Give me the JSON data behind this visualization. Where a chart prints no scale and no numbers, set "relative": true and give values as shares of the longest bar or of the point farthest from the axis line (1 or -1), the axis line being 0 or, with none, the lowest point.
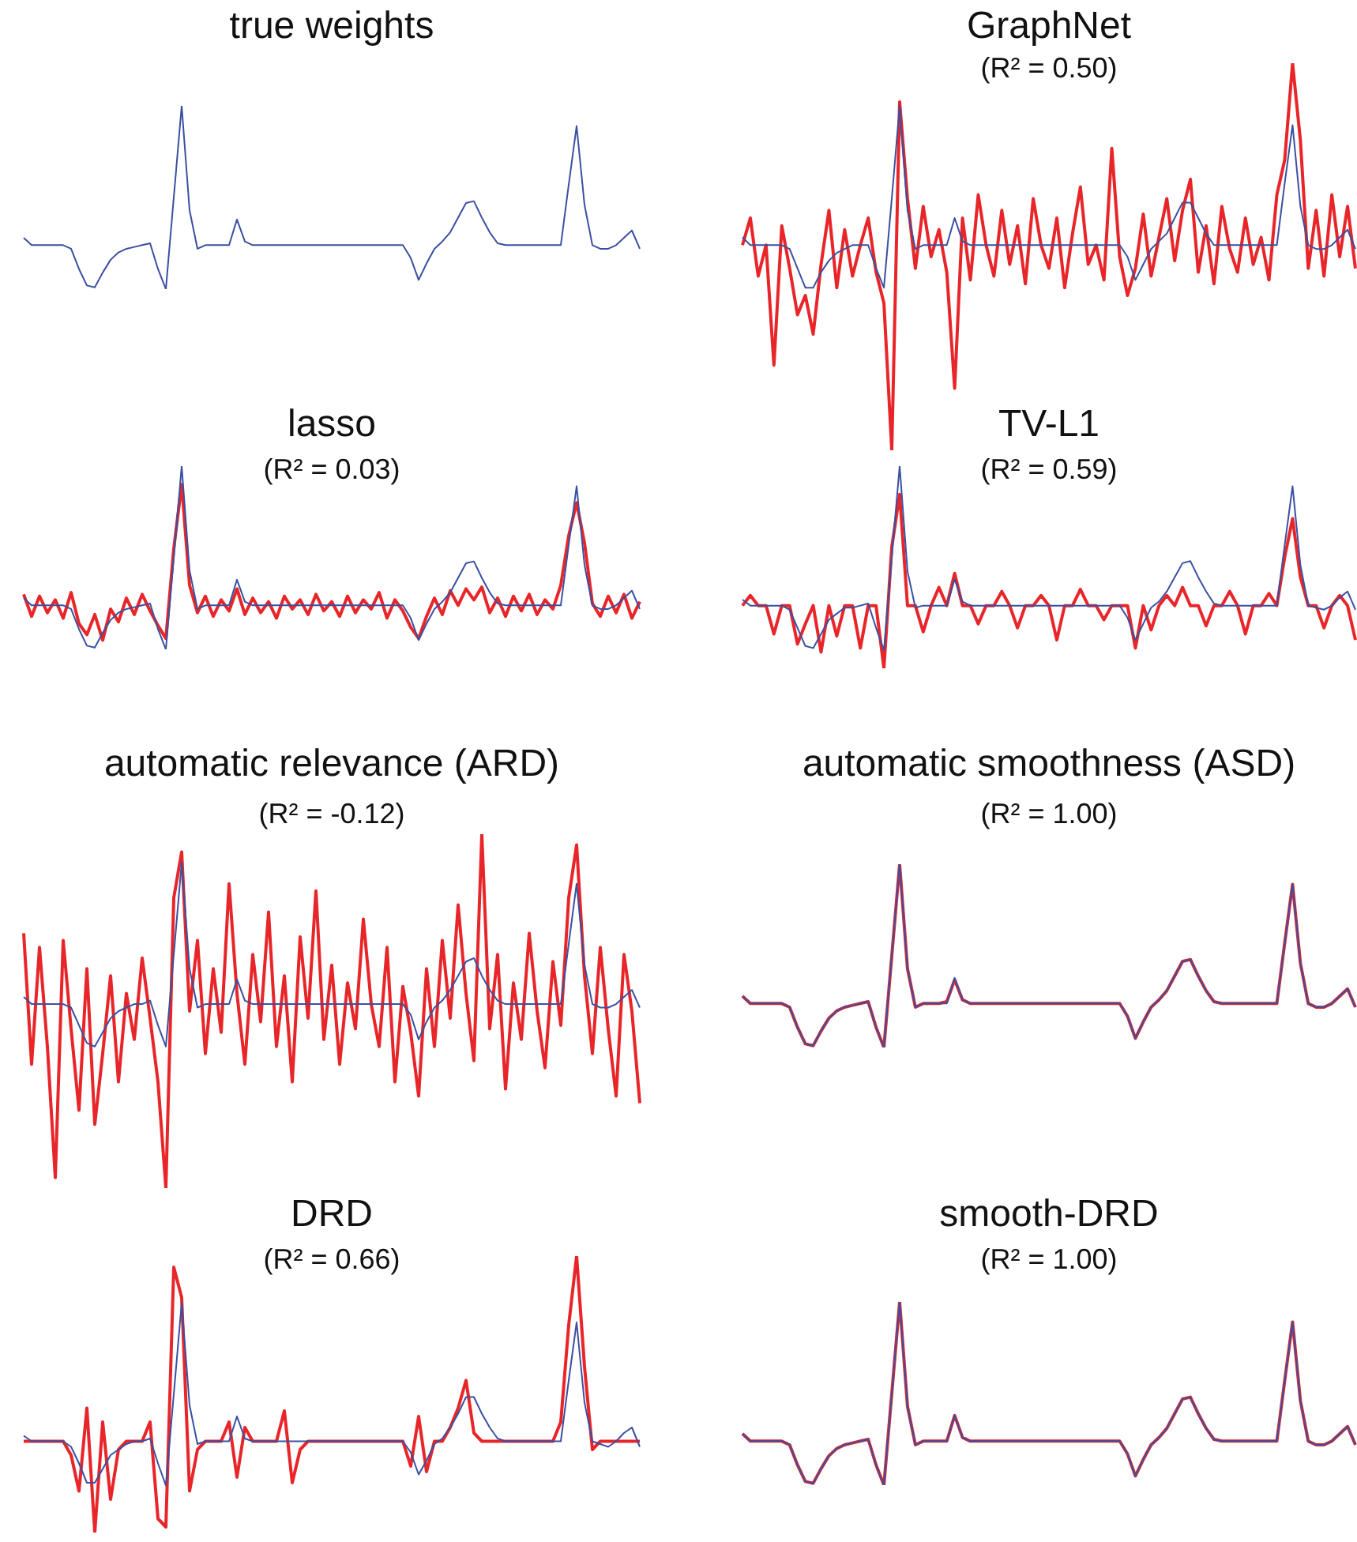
{
  "chart_data": [
    {
      "type": "line",
      "title": "true weights",
      "relative": true,
      "categories": [
        null,
        null,
        null,
        null,
        null,
        null,
        null,
        null,
        null,
        null,
        null,
        null,
        null,
        null,
        null,
        null,
        null,
        null,
        null,
        null,
        null,
        null,
        null,
        null,
        null,
        null,
        null,
        null,
        null,
        null,
        null,
        null,
        null,
        null,
        null,
        null,
        null,
        null,
        null,
        null,
        null,
        null,
        null,
        null,
        null,
        null,
        null,
        null,
        null,
        null,
        null,
        null,
        null,
        null,
        null,
        null,
        null,
        null,
        null,
        null,
        null,
        null,
        null,
        null,
        null,
        null,
        null,
        null,
        null,
        null,
        null,
        null,
        null,
        null,
        null,
        null,
        null,
        null,
        null
      ],
      "series": [
        {
          "color": "#3a50a0",
          "values": [
            0.28,
            0.24,
            0.24,
            0.24,
            0.24,
            0.24,
            0.22,
            0.11,
            0.02,
            0.01,
            0.09,
            0.16,
            0.2,
            0.22,
            0.23,
            0.24,
            0.25,
            0.11,
            0,
            0.5,
            1,
            0.43,
            0.22,
            0.24,
            0.24,
            0.24,
            0.24,
            0.38,
            0.26,
            0.24,
            0.24,
            0.24,
            0.24,
            0.24,
            0.24,
            0.24,
            0.24,
            0.24,
            0.24,
            0.24,
            0.24,
            0.24,
            0.24,
            0.24,
            0.24,
            0.24,
            0.24,
            0.24,
            0.24,
            0.17,
            0.05,
            0.14,
            0.22,
            0.26,
            0.31,
            0.39,
            0.47,
            0.48,
            0.39,
            0.31,
            0.25,
            0.24,
            0.24,
            0.24,
            0.24,
            0.24,
            0.24,
            0.24,
            0.24,
            0.57,
            0.89,
            0.46,
            0.24,
            0.22,
            0.22,
            0.24,
            0.28,
            0.32,
            0.22
          ]
        }
      ]
    },
    {
      "type": "line",
      "title": "GraphNet",
      "subtitle": "(R² = 0.50)",
      "relative": true,
      "categories": [
        null,
        null,
        null,
        null,
        null,
        null,
        null,
        null,
        null,
        null,
        null,
        null,
        null,
        null,
        null,
        null,
        null,
        null,
        null,
        null,
        null,
        null,
        null,
        null,
        null,
        null,
        null,
        null,
        null,
        null,
        null,
        null,
        null,
        null,
        null,
        null,
        null,
        null,
        null,
        null,
        null,
        null,
        null,
        null,
        null,
        null,
        null,
        null,
        null,
        null,
        null,
        null,
        null,
        null,
        null,
        null,
        null,
        null,
        null,
        null,
        null,
        null,
        null,
        null,
        null,
        null,
        null,
        null,
        null,
        null,
        null,
        null,
        null,
        null,
        null,
        null,
        null,
        null,
        null
      ],
      "series": [
        {
          "color": "#3a50a0",
          "values": [
            0.55,
            0.53,
            0.53,
            0.53,
            0.53,
            0.53,
            0.52,
            0.47,
            0.42,
            0.42,
            0.46,
            0.49,
            0.51,
            0.52,
            0.53,
            0.53,
            0.53,
            0.47,
            0.42,
            0.65,
            0.89,
            0.62,
            0.52,
            0.53,
            0.53,
            0.53,
            0.53,
            0.6,
            0.54,
            0.53,
            0.53,
            0.53,
            0.53,
            0.53,
            0.53,
            0.53,
            0.53,
            0.53,
            0.53,
            0.53,
            0.53,
            0.53,
            0.53,
            0.53,
            0.53,
            0.53,
            0.53,
            0.53,
            0.53,
            0.5,
            0.44,
            0.48,
            0.52,
            0.54,
            0.56,
            0.6,
            0.64,
            0.64,
            0.6,
            0.56,
            0.53,
            0.53,
            0.53,
            0.53,
            0.53,
            0.53,
            0.53,
            0.53,
            0.53,
            0.69,
            0.84,
            0.63,
            0.53,
            0.52,
            0.52,
            0.53,
            0.55,
            0.57,
            0.52
          ]
        },
        {
          "color": "#e8262a",
          "values": [
            0.53,
            0.6,
            0.45,
            0.53,
            0.22,
            0.58,
            0.47,
            0.35,
            0.4,
            0.3,
            0.48,
            0.62,
            0.42,
            0.57,
            0.45,
            0.53,
            0.6,
            0.46,
            0.38,
            0,
            0.9,
            0.65,
            0.47,
            0.63,
            0.5,
            0.57,
            0.46,
            0.16,
            0.6,
            0.44,
            0.66,
            0.53,
            0.45,
            0.62,
            0.48,
            0.58,
            0.43,
            0.65,
            0.53,
            0.47,
            0.6,
            0.42,
            0.56,
            0.68,
            0.48,
            0.53,
            0.44,
            0.78,
            0.5,
            0.4,
            0.47,
            0.61,
            0.45,
            0.55,
            0.65,
            0.49,
            0.62,
            0.7,
            0.46,
            0.58,
            0.43,
            0.63,
            0.52,
            0.46,
            0.6,
            0.48,
            0.55,
            0.44,
            0.66,
            0.75,
            1,
            0.8,
            0.47,
            0.62,
            0.45,
            0.66,
            0.5,
            0.63,
            0.47
          ]
        }
      ]
    },
    {
      "type": "line",
      "title": "lasso",
      "subtitle": "(R² = 0.03)",
      "relative": true,
      "categories": [
        null,
        null,
        null,
        null,
        null,
        null,
        null,
        null,
        null,
        null,
        null,
        null,
        null,
        null,
        null,
        null,
        null,
        null,
        null,
        null,
        null,
        null,
        null,
        null,
        null,
        null,
        null,
        null,
        null,
        null,
        null,
        null,
        null,
        null,
        null,
        null,
        null,
        null,
        null,
        null,
        null,
        null,
        null,
        null,
        null,
        null,
        null,
        null,
        null,
        null,
        null,
        null,
        null,
        null,
        null,
        null,
        null,
        null,
        null,
        null,
        null,
        null,
        null,
        null,
        null,
        null,
        null,
        null,
        null,
        null,
        null,
        null,
        null,
        null,
        null,
        null,
        null,
        null,
        null
      ],
      "series": [
        {
          "color": "#3a50a0",
          "values": [
            0.28,
            0.24,
            0.24,
            0.24,
            0.24,
            0.24,
            0.22,
            0.11,
            0.02,
            0.01,
            0.09,
            0.16,
            0.2,
            0.22,
            0.23,
            0.24,
            0.25,
            0.11,
            0,
            0.5,
            1,
            0.43,
            0.22,
            0.24,
            0.24,
            0.24,
            0.24,
            0.38,
            0.26,
            0.24,
            0.24,
            0.24,
            0.24,
            0.24,
            0.24,
            0.24,
            0.24,
            0.24,
            0.24,
            0.24,
            0.24,
            0.24,
            0.24,
            0.24,
            0.24,
            0.24,
            0.24,
            0.24,
            0.24,
            0.17,
            0.05,
            0.14,
            0.22,
            0.26,
            0.31,
            0.39,
            0.47,
            0.48,
            0.39,
            0.31,
            0.25,
            0.24,
            0.24,
            0.24,
            0.24,
            0.24,
            0.24,
            0.24,
            0.24,
            0.57,
            0.89,
            0.46,
            0.24,
            0.22,
            0.22,
            0.24,
            0.28,
            0.32,
            0.22
          ]
        },
        {
          "color": "#e8262a",
          "values": [
            0.3,
            0.18,
            0.29,
            0.2,
            0.27,
            0.17,
            0.31,
            0.14,
            0.08,
            0.19,
            0.05,
            0.22,
            0.15,
            0.28,
            0.19,
            0.3,
            0.21,
            0.13,
            0.06,
            0.55,
            0.9,
            0.35,
            0.2,
            0.29,
            0.18,
            0.27,
            0.21,
            0.33,
            0.19,
            0.28,
            0.2,
            0.26,
            0.17,
            0.29,
            0.22,
            0.27,
            0.19,
            0.3,
            0.21,
            0.26,
            0.18,
            0.29,
            0.2,
            0.27,
            0.22,
            0.31,
            0.17,
            0.27,
            0.21,
            0.12,
            0.06,
            0.18,
            0.28,
            0.19,
            0.32,
            0.24,
            0.33,
            0.27,
            0.34,
            0.2,
            0.28,
            0.18,
            0.29,
            0.21,
            0.3,
            0.19,
            0.27,
            0.22,
            0.35,
            0.62,
            0.8,
            0.58,
            0.25,
            0.18,
            0.29,
            0.2,
            0.3,
            0.17,
            0.26
          ]
        }
      ]
    },
    {
      "type": "line",
      "title": "TV-L1",
      "subtitle": "(R² = 0.59)",
      "relative": true,
      "categories": [
        null,
        null,
        null,
        null,
        null,
        null,
        null,
        null,
        null,
        null,
        null,
        null,
        null,
        null,
        null,
        null,
        null,
        null,
        null,
        null,
        null,
        null,
        null,
        null,
        null,
        null,
        null,
        null,
        null,
        null,
        null,
        null,
        null,
        null,
        null,
        null,
        null,
        null,
        null,
        null,
        null,
        null,
        null,
        null,
        null,
        null,
        null,
        null,
        null,
        null,
        null,
        null,
        null,
        null,
        null,
        null,
        null,
        null,
        null,
        null,
        null,
        null,
        null,
        null,
        null,
        null,
        null,
        null,
        null,
        null,
        null,
        null,
        null,
        null,
        null,
        null,
        null,
        null,
        null
      ],
      "series": [
        {
          "color": "#3a50a0",
          "values": [
            0.34,
            0.31,
            0.31,
            0.31,
            0.31,
            0.31,
            0.29,
            0.2,
            0.11,
            0.1,
            0.17,
            0.24,
            0.27,
            0.3,
            0.3,
            0.31,
            0.32,
            0.2,
            0.09,
            0.55,
            1,
            0.48,
            0.3,
            0.31,
            0.31,
            0.31,
            0.31,
            0.44,
            0.33,
            0.31,
            0.31,
            0.31,
            0.31,
            0.31,
            0.31,
            0.31,
            0.31,
            0.31,
            0.31,
            0.31,
            0.31,
            0.31,
            0.31,
            0.31,
            0.31,
            0.31,
            0.31,
            0.31,
            0.31,
            0.25,
            0.14,
            0.22,
            0.3,
            0.33,
            0.38,
            0.45,
            0.52,
            0.53,
            0.45,
            0.38,
            0.32,
            0.31,
            0.31,
            0.31,
            0.31,
            0.31,
            0.31,
            0.31,
            0.31,
            0.61,
            0.9,
            0.51,
            0.31,
            0.3,
            0.29,
            0.31,
            0.35,
            0.38,
            0.29
          ]
        },
        {
          "color": "#e8262a",
          "values": [
            0.31,
            0.36,
            0.31,
            0.31,
            0.17,
            0.31,
            0.31,
            0.12,
            0.22,
            0.31,
            0.08,
            0.31,
            0.16,
            0.31,
            0.31,
            0.1,
            0.31,
            0.31,
            0,
            0.6,
            0.86,
            0.31,
            0.31,
            0.18,
            0.31,
            0.4,
            0.31,
            0.47,
            0.31,
            0.31,
            0.22,
            0.31,
            0.31,
            0.38,
            0.31,
            0.2,
            0.31,
            0.31,
            0.36,
            0.31,
            0.14,
            0.31,
            0.31,
            0.39,
            0.31,
            0.31,
            0.24,
            0.31,
            0.31,
            0.31,
            0.1,
            0.31,
            0.19,
            0.31,
            0.36,
            0.31,
            0.4,
            0.31,
            0.31,
            0.21,
            0.31,
            0.31,
            0.38,
            0.31,
            0.17,
            0.31,
            0.31,
            0.37,
            0.31,
            0.55,
            0.74,
            0.45,
            0.31,
            0.31,
            0.2,
            0.31,
            0.36,
            0.31,
            0.14
          ]
        }
      ]
    },
    {
      "type": "line",
      "title": "automatic relevance (ARD)",
      "subtitle": "(R² = -0.12)",
      "relative": true,
      "categories": [
        null,
        null,
        null,
        null,
        null,
        null,
        null,
        null,
        null,
        null,
        null,
        null,
        null,
        null,
        null,
        null,
        null,
        null,
        null,
        null,
        null,
        null,
        null,
        null,
        null,
        null,
        null,
        null,
        null,
        null,
        null,
        null,
        null,
        null,
        null,
        null,
        null,
        null,
        null,
        null,
        null,
        null,
        null,
        null,
        null,
        null,
        null,
        null,
        null,
        null,
        null,
        null,
        null,
        null,
        null,
        null,
        null,
        null,
        null,
        null,
        null,
        null,
        null,
        null,
        null,
        null,
        null,
        null,
        null,
        null,
        null,
        null,
        null,
        null,
        null,
        null,
        null,
        null,
        null
      ],
      "series": [
        {
          "color": "#3a50a0",
          "values": [
            0.54,
            0.52,
            0.52,
            0.52,
            0.52,
            0.52,
            0.51,
            0.46,
            0.41,
            0.4,
            0.44,
            0.48,
            0.5,
            0.51,
            0.52,
            0.52,
            0.53,
            0.46,
            0.4,
            0.66,
            0.92,
            0.62,
            0.51,
            0.52,
            0.52,
            0.52,
            0.52,
            0.59,
            0.53,
            0.52,
            0.52,
            0.52,
            0.52,
            0.52,
            0.52,
            0.52,
            0.52,
            0.52,
            0.52,
            0.52,
            0.52,
            0.52,
            0.52,
            0.52,
            0.52,
            0.52,
            0.52,
            0.52,
            0.52,
            0.49,
            0.42,
            0.47,
            0.51,
            0.53,
            0.56,
            0.6,
            0.64,
            0.65,
            0.6,
            0.56,
            0.53,
            0.52,
            0.52,
            0.52,
            0.52,
            0.52,
            0.52,
            0.52,
            0.52,
            0.69,
            0.86,
            0.63,
            0.52,
            0.51,
            0.51,
            0.52,
            0.54,
            0.56,
            0.51
          ]
        },
        {
          "color": "#e8262a",
          "values": [
            0.72,
            0.35,
            0.68,
            0.4,
            0.03,
            0.7,
            0.45,
            0.22,
            0.62,
            0.18,
            0.38,
            0.6,
            0.3,
            0.55,
            0.42,
            0.65,
            0.48,
            0.3,
            0,
            0.82,
            0.95,
            0.5,
            0.7,
            0.38,
            0.62,
            0.44,
            0.86,
            0.55,
            0.35,
            0.66,
            0.47,
            0.78,
            0.4,
            0.6,
            0.3,
            0.71,
            0.48,
            0.84,
            0.42,
            0.63,
            0.35,
            0.58,
            0.45,
            0.76,
            0.52,
            0.4,
            0.68,
            0.3,
            0.57,
            0.44,
            0.26,
            0.62,
            0.4,
            0.7,
            0.48,
            0.8,
            0.55,
            0.36,
            1,
            0.45,
            0.66,
            0.28,
            0.58,
            0.42,
            0.72,
            0.5,
            0.34,
            0.64,
            0.46,
            0.82,
            0.97,
            0.6,
            0.38,
            0.68,
            0.45,
            0.26,
            0.66,
            0.5,
            0.24
          ]
        }
      ]
    },
    {
      "type": "line",
      "title": "automatic smoothness (ASD)",
      "subtitle": "(R² = 1.00)",
      "relative": true,
      "categories": [
        null,
        null,
        null,
        null,
        null,
        null,
        null,
        null,
        null,
        null,
        null,
        null,
        null,
        null,
        null,
        null,
        null,
        null,
        null,
        null,
        null,
        null,
        null,
        null,
        null,
        null,
        null,
        null,
        null,
        null,
        null,
        null,
        null,
        null,
        null,
        null,
        null,
        null,
        null,
        null,
        null,
        null,
        null,
        null,
        null,
        null,
        null,
        null,
        null,
        null,
        null,
        null,
        null,
        null,
        null,
        null,
        null,
        null,
        null,
        null,
        null,
        null,
        null,
        null,
        null,
        null,
        null,
        null,
        null,
        null,
        null,
        null,
        null,
        null,
        null,
        null,
        null,
        null,
        null
      ],
      "series": [
        {
          "color": "#3a50a0",
          "values": [
            0.28,
            0.24,
            0.24,
            0.24,
            0.24,
            0.24,
            0.22,
            0.11,
            0.02,
            0.01,
            0.09,
            0.16,
            0.2,
            0.22,
            0.23,
            0.24,
            0.25,
            0.11,
            0,
            0.5,
            1,
            0.43,
            0.22,
            0.24,
            0.24,
            0.24,
            0.24,
            0.38,
            0.26,
            0.24,
            0.24,
            0.24,
            0.24,
            0.24,
            0.24,
            0.24,
            0.24,
            0.24,
            0.24,
            0.24,
            0.24,
            0.24,
            0.24,
            0.24,
            0.24,
            0.24,
            0.24,
            0.24,
            0.24,
            0.17,
            0.05,
            0.14,
            0.22,
            0.26,
            0.31,
            0.39,
            0.47,
            0.48,
            0.39,
            0.31,
            0.25,
            0.24,
            0.24,
            0.24,
            0.24,
            0.24,
            0.24,
            0.24,
            0.24,
            0.57,
            0.89,
            0.46,
            0.24,
            0.22,
            0.22,
            0.24,
            0.28,
            0.32,
            0.22
          ]
        },
        {
          "color": "#e8262a",
          "values": [
            0.28,
            0.24,
            0.24,
            0.24,
            0.24,
            0.24,
            0.22,
            0.11,
            0.02,
            0.01,
            0.09,
            0.16,
            0.2,
            0.22,
            0.23,
            0.24,
            0.25,
            0.11,
            0,
            0.5,
            1,
            0.43,
            0.22,
            0.24,
            0.24,
            0.24,
            0.25,
            0.37,
            0.26,
            0.24,
            0.24,
            0.24,
            0.24,
            0.24,
            0.24,
            0.24,
            0.24,
            0.24,
            0.24,
            0.24,
            0.24,
            0.24,
            0.24,
            0.24,
            0.24,
            0.24,
            0.24,
            0.24,
            0.24,
            0.17,
            0.05,
            0.14,
            0.22,
            0.26,
            0.31,
            0.39,
            0.47,
            0.48,
            0.39,
            0.31,
            0.25,
            0.24,
            0.24,
            0.24,
            0.24,
            0.24,
            0.24,
            0.24,
            0.24,
            0.57,
            0.89,
            0.46,
            0.24,
            0.22,
            0.22,
            0.24,
            0.28,
            0.32,
            0.22
          ]
        }
      ]
    },
    {
      "type": "line",
      "title": "DRD",
      "subtitle": "(R² = 0.66)",
      "relative": true,
      "categories": [
        null,
        null,
        null,
        null,
        null,
        null,
        null,
        null,
        null,
        null,
        null,
        null,
        null,
        null,
        null,
        null,
        null,
        null,
        null,
        null,
        null,
        null,
        null,
        null,
        null,
        null,
        null,
        null,
        null,
        null,
        null,
        null,
        null,
        null,
        null,
        null,
        null,
        null,
        null,
        null,
        null,
        null,
        null,
        null,
        null,
        null,
        null,
        null,
        null,
        null,
        null,
        null,
        null,
        null,
        null,
        null,
        null,
        null,
        null,
        null,
        null,
        null,
        null,
        null,
        null,
        null,
        null,
        null,
        null,
        null,
        null,
        null,
        null,
        null,
        null,
        null,
        null,
        null,
        null
      ],
      "series": [
        {
          "color": "#3a50a0",
          "values": [
            0.35,
            0.33,
            0.33,
            0.33,
            0.33,
            0.33,
            0.31,
            0.25,
            0.18,
            0.18,
            0.23,
            0.28,
            0.3,
            0.32,
            0.33,
            0.33,
            0.34,
            0.25,
            0.17,
            0.5,
            0.83,
            0.46,
            0.32,
            0.33,
            0.33,
            0.33,
            0.33,
            0.42,
            0.34,
            0.33,
            0.33,
            0.33,
            0.33,
            0.33,
            0.33,
            0.33,
            0.33,
            0.33,
            0.33,
            0.33,
            0.33,
            0.33,
            0.33,
            0.33,
            0.33,
            0.33,
            0.33,
            0.33,
            0.33,
            0.29,
            0.21,
            0.26,
            0.32,
            0.34,
            0.38,
            0.43,
            0.49,
            0.49,
            0.43,
            0.38,
            0.34,
            0.33,
            0.33,
            0.33,
            0.33,
            0.33,
            0.33,
            0.33,
            0.33,
            0.55,
            0.76,
            0.47,
            0.33,
            0.32,
            0.31,
            0.33,
            0.36,
            0.38,
            0.31
          ]
        },
        {
          "color": "#e8262a",
          "values": [
            0.33,
            0.33,
            0.33,
            0.33,
            0.33,
            0.33,
            0.28,
            0.15,
            0.45,
            0,
            0.4,
            0.12,
            0.3,
            0.33,
            0.33,
            0.33,
            0.4,
            0.05,
            0.02,
            0.96,
            0.85,
            0.15,
            0.3,
            0.33,
            0.33,
            0.33,
            0.4,
            0.2,
            0.38,
            0.33,
            0.33,
            0.33,
            0.33,
            0.44,
            0.18,
            0.3,
            0.33,
            0.33,
            0.33,
            0.33,
            0.33,
            0.33,
            0.33,
            0.33,
            0.33,
            0.33,
            0.33,
            0.33,
            0.33,
            0.24,
            0.42,
            0.22,
            0.33,
            0.33,
            0.38,
            0.45,
            0.55,
            0.36,
            0.33,
            0.33,
            0.33,
            0.33,
            0.33,
            0.33,
            0.33,
            0.33,
            0.33,
            0.33,
            0.4,
            0.75,
            1,
            0.6,
            0.3,
            0.33,
            0.33,
            0.33,
            0.33,
            0.33,
            0.33
          ]
        }
      ]
    },
    {
      "type": "line",
      "title": "smooth-DRD",
      "subtitle": "(R² = 1.00)",
      "relative": true,
      "categories": [
        null,
        null,
        null,
        null,
        null,
        null,
        null,
        null,
        null,
        null,
        null,
        null,
        null,
        null,
        null,
        null,
        null,
        null,
        null,
        null,
        null,
        null,
        null,
        null,
        null,
        null,
        null,
        null,
        null,
        null,
        null,
        null,
        null,
        null,
        null,
        null,
        null,
        null,
        null,
        null,
        null,
        null,
        null,
        null,
        null,
        null,
        null,
        null,
        null,
        null,
        null,
        null,
        null,
        null,
        null,
        null,
        null,
        null,
        null,
        null,
        null,
        null,
        null,
        null,
        null,
        null,
        null,
        null,
        null,
        null,
        null,
        null,
        null,
        null,
        null,
        null,
        null,
        null,
        null
      ],
      "series": [
        {
          "color": "#3a50a0",
          "values": [
            0.28,
            0.24,
            0.24,
            0.24,
            0.24,
            0.24,
            0.22,
            0.11,
            0.02,
            0.01,
            0.09,
            0.16,
            0.2,
            0.22,
            0.23,
            0.24,
            0.25,
            0.11,
            0,
            0.5,
            1,
            0.43,
            0.22,
            0.24,
            0.24,
            0.24,
            0.24,
            0.38,
            0.26,
            0.24,
            0.24,
            0.24,
            0.24,
            0.24,
            0.24,
            0.24,
            0.24,
            0.24,
            0.24,
            0.24,
            0.24,
            0.24,
            0.24,
            0.24,
            0.24,
            0.24,
            0.24,
            0.24,
            0.24,
            0.17,
            0.05,
            0.14,
            0.22,
            0.26,
            0.31,
            0.39,
            0.47,
            0.48,
            0.39,
            0.31,
            0.25,
            0.24,
            0.24,
            0.24,
            0.24,
            0.24,
            0.24,
            0.24,
            0.24,
            0.57,
            0.89,
            0.46,
            0.24,
            0.22,
            0.22,
            0.24,
            0.28,
            0.32,
            0.22
          ]
        },
        {
          "color": "#e8262a",
          "values": [
            0.28,
            0.24,
            0.24,
            0.24,
            0.24,
            0.24,
            0.22,
            0.11,
            0.02,
            0.01,
            0.09,
            0.16,
            0.2,
            0.22,
            0.23,
            0.24,
            0.25,
            0.11,
            0,
            0.5,
            1,
            0.43,
            0.22,
            0.24,
            0.24,
            0.24,
            0.24,
            0.38,
            0.26,
            0.24,
            0.24,
            0.24,
            0.24,
            0.24,
            0.24,
            0.24,
            0.24,
            0.24,
            0.24,
            0.24,
            0.24,
            0.24,
            0.24,
            0.24,
            0.24,
            0.24,
            0.24,
            0.24,
            0.24,
            0.17,
            0.05,
            0.14,
            0.22,
            0.26,
            0.31,
            0.39,
            0.47,
            0.48,
            0.39,
            0.31,
            0.25,
            0.24,
            0.24,
            0.24,
            0.24,
            0.24,
            0.24,
            0.24,
            0.24,
            0.57,
            0.89,
            0.46,
            0.24,
            0.22,
            0.22,
            0.24,
            0.28,
            0.32,
            0.22
          ]
        }
      ]
    }
  ]
}
